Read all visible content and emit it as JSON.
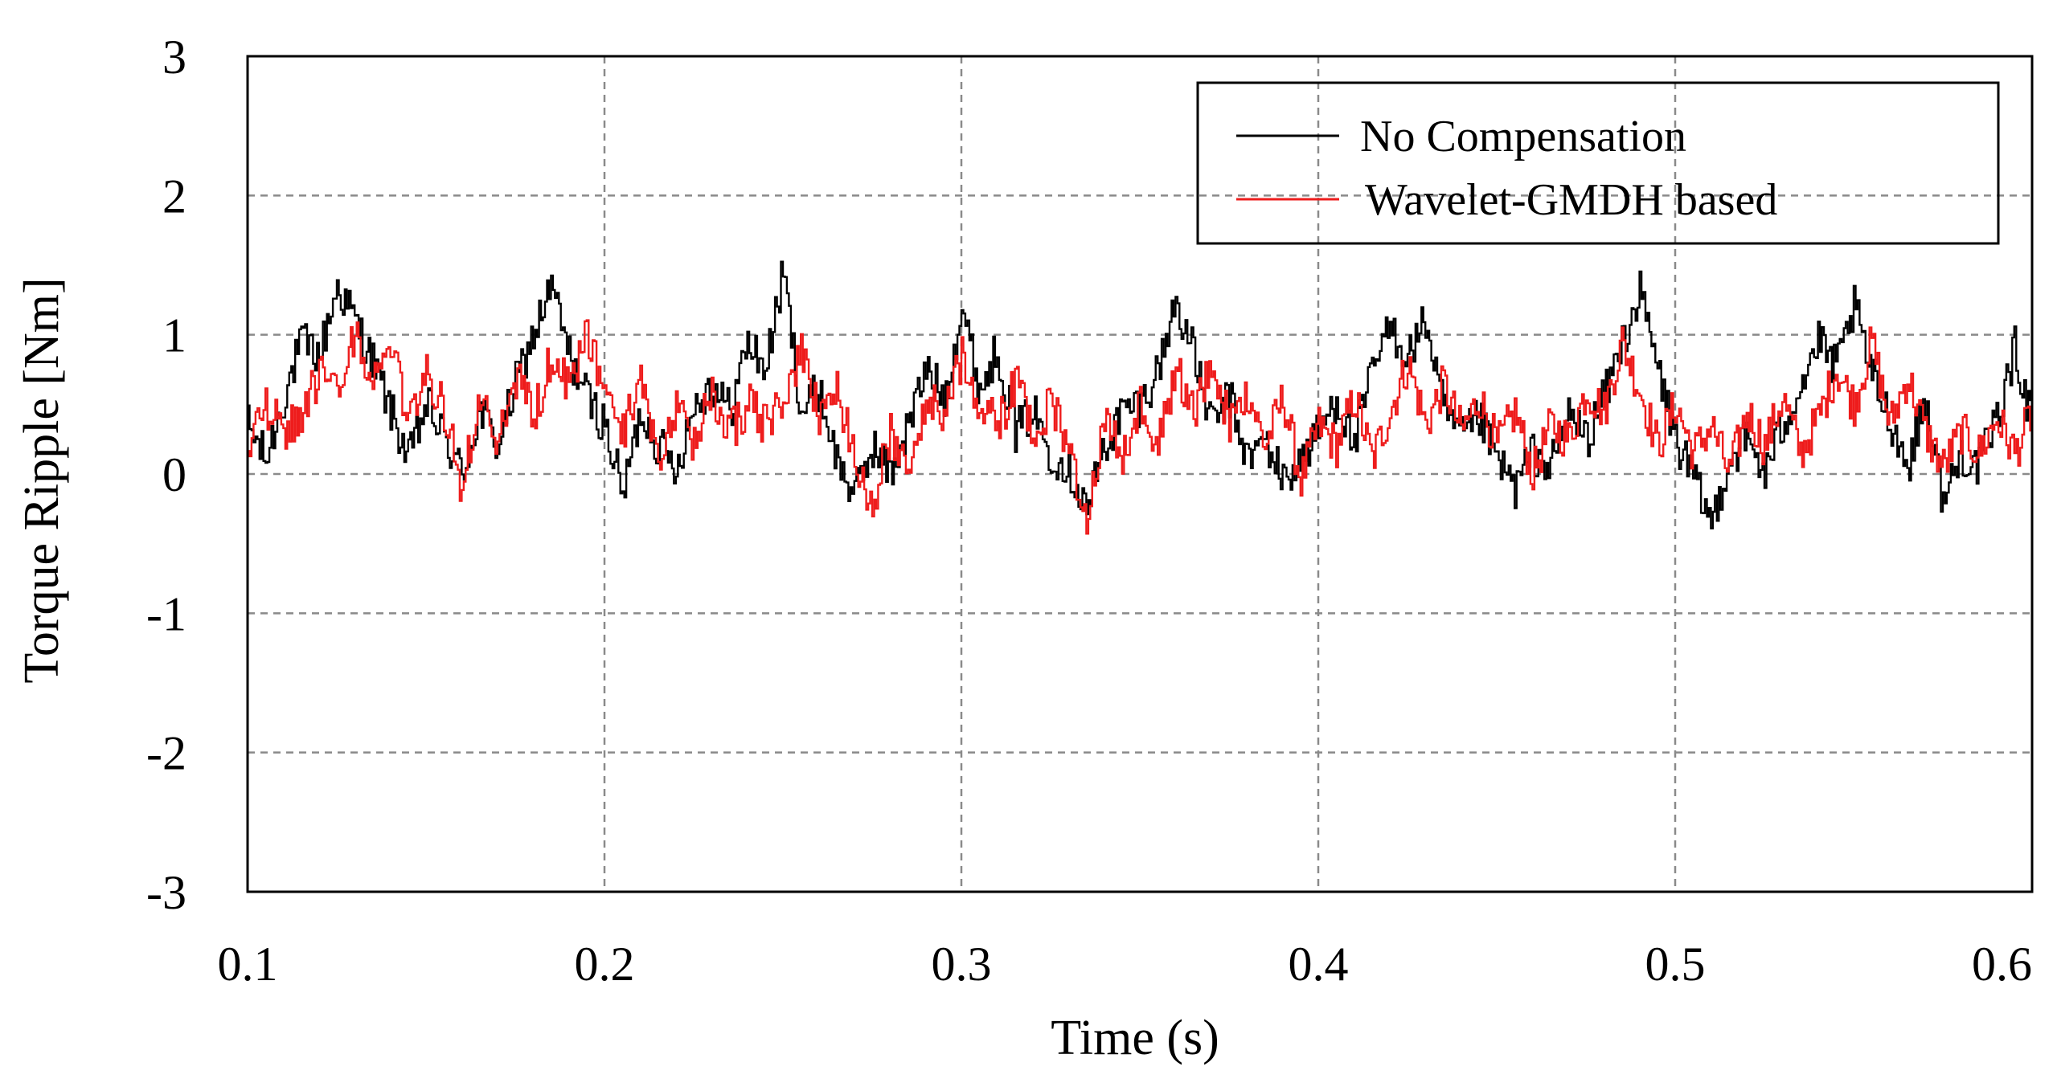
{
  "chart_data": {
    "type": "line",
    "title": "",
    "xlabel": "Time (s)",
    "ylabel": "Torque Ripple [Nm]",
    "xlim": [
      0.1,
      0.6
    ],
    "ylim": [
      -3,
      3
    ],
    "grid": true,
    "legend_position": "top-right",
    "x_ticks": [
      0.1,
      0.2,
      0.3,
      0.4,
      0.5,
      0.6
    ],
    "x_tick_labels": [
      "0.1",
      "0.2",
      "0.3",
      "0.4",
      "0.5",
      "0.6"
    ],
    "y_ticks": [
      3,
      2,
      1,
      0,
      -1,
      -2,
      -3
    ],
    "y_tick_labels": [
      "3",
      "2",
      "1",
      "0",
      "-1",
      "-2",
      "-3"
    ],
    "series": [
      {
        "name": "No Compensation",
        "color": "#000000",
        "x": [
          0.1,
          0.105,
          0.11,
          0.115,
          0.12,
          0.125,
          0.13,
          0.135,
          0.14,
          0.145,
          0.15,
          0.155,
          0.16,
          0.165,
          0.17,
          0.175,
          0.18,
          0.185,
          0.19,
          0.195,
          0.2,
          0.205,
          0.21,
          0.215,
          0.22,
          0.225,
          0.23,
          0.235,
          0.24,
          0.245,
          0.25,
          0.255,
          0.26,
          0.265,
          0.27,
          0.275,
          0.28,
          0.285,
          0.29,
          0.295,
          0.3,
          0.305,
          0.31,
          0.315,
          0.32,
          0.325,
          0.33,
          0.335,
          0.34,
          0.345,
          0.35,
          0.355,
          0.36,
          0.365,
          0.37,
          0.375,
          0.38,
          0.385,
          0.39,
          0.395,
          0.4,
          0.405,
          0.41,
          0.415,
          0.42,
          0.425,
          0.43,
          0.435,
          0.44,
          0.445,
          0.45,
          0.455,
          0.46,
          0.465,
          0.47,
          0.475,
          0.48,
          0.485,
          0.49,
          0.495,
          0.5,
          0.505,
          0.51,
          0.515,
          0.52,
          0.525,
          0.53,
          0.535,
          0.54,
          0.545,
          0.55,
          0.555,
          0.56,
          0.565,
          0.57,
          0.575,
          0.58,
          0.585,
          0.59,
          0.595,
          0.6
        ],
        "values": [
          0.35,
          0.1,
          0.55,
          0.95,
          0.85,
          1.35,
          1.1,
          0.8,
          0.45,
          0.1,
          0.5,
          0.25,
          0.0,
          0.45,
          0.2,
          0.65,
          1.0,
          1.35,
          0.85,
          0.55,
          0.35,
          -0.15,
          0.45,
          0.2,
          0.05,
          0.5,
          0.65,
          0.45,
          0.95,
          0.75,
          1.45,
          0.45,
          0.6,
          0.1,
          -0.15,
          0.2,
          0.0,
          0.35,
          0.75,
          0.55,
          1.2,
          0.6,
          0.9,
          0.3,
          0.45,
          0.15,
          0.05,
          -0.25,
          0.2,
          0.45,
          0.5,
          0.75,
          1.25,
          0.85,
          0.35,
          0.55,
          0.1,
          0.25,
          -0.05,
          0.1,
          0.3,
          0.55,
          0.2,
          0.75,
          1.05,
          0.85,
          1.1,
          0.45,
          0.25,
          0.4,
          0.1,
          -0.1,
          0.15,
          0.05,
          0.45,
          0.25,
          0.55,
          0.95,
          1.3,
          0.75,
          0.25,
          -0.05,
          -0.35,
          0.1,
          0.25,
          0.0,
          0.35,
          0.65,
          0.95,
          0.75,
          1.2,
          0.7,
          0.4,
          0.05,
          0.55,
          -0.2,
          0.15,
          0.05,
          0.4,
          0.9,
          0.35
        ]
      },
      {
        "name": "Wavelet-GMDH based",
        "color": "#ee1c1c",
        "x": [
          0.1,
          0.105,
          0.11,
          0.115,
          0.12,
          0.125,
          0.13,
          0.135,
          0.14,
          0.145,
          0.15,
          0.155,
          0.16,
          0.165,
          0.17,
          0.175,
          0.18,
          0.185,
          0.19,
          0.195,
          0.2,
          0.205,
          0.21,
          0.215,
          0.22,
          0.225,
          0.23,
          0.235,
          0.24,
          0.245,
          0.25,
          0.255,
          0.26,
          0.265,
          0.27,
          0.275,
          0.28,
          0.285,
          0.29,
          0.295,
          0.3,
          0.305,
          0.31,
          0.315,
          0.32,
          0.325,
          0.33,
          0.335,
          0.34,
          0.345,
          0.35,
          0.355,
          0.36,
          0.365,
          0.37,
          0.375,
          0.38,
          0.385,
          0.39,
          0.395,
          0.4,
          0.405,
          0.41,
          0.415,
          0.42,
          0.425,
          0.43,
          0.435,
          0.44,
          0.445,
          0.45,
          0.455,
          0.46,
          0.465,
          0.47,
          0.475,
          0.48,
          0.485,
          0.49,
          0.495,
          0.5,
          0.505,
          0.51,
          0.515,
          0.52,
          0.525,
          0.53,
          0.535,
          0.54,
          0.545,
          0.55,
          0.555,
          0.56,
          0.565,
          0.57,
          0.575,
          0.58,
          0.585,
          0.59,
          0.595,
          0.6
        ],
        "values": [
          0.25,
          0.5,
          0.3,
          0.45,
          0.7,
          0.55,
          1.0,
          0.65,
          0.9,
          0.35,
          0.75,
          0.45,
          -0.1,
          0.55,
          0.2,
          0.7,
          0.4,
          0.85,
          0.6,
          1.0,
          0.55,
          0.3,
          0.7,
          0.1,
          0.45,
          0.2,
          0.6,
          0.3,
          0.5,
          0.35,
          0.55,
          0.85,
          0.4,
          0.6,
          0.15,
          -0.25,
          0.3,
          0.1,
          0.55,
          0.4,
          0.85,
          0.5,
          0.35,
          0.65,
          0.3,
          0.5,
          0.2,
          -0.35,
          0.4,
          0.1,
          0.55,
          0.2,
          0.75,
          0.45,
          0.8,
          0.35,
          0.6,
          0.2,
          0.55,
          -0.05,
          0.35,
          0.2,
          0.55,
          0.1,
          0.45,
          0.8,
          0.35,
          0.65,
          0.3,
          0.55,
          0.2,
          0.45,
          0.0,
          0.35,
          0.25,
          0.6,
          0.45,
          0.95,
          0.6,
          0.2,
          0.5,
          0.15,
          0.35,
          0.0,
          0.45,
          0.2,
          0.55,
          0.15,
          0.4,
          0.75,
          0.5,
          0.95,
          0.35,
          0.7,
          0.3,
          0.05,
          0.3,
          0.15,
          0.4,
          0.15,
          0.45
        ]
      }
    ]
  }
}
